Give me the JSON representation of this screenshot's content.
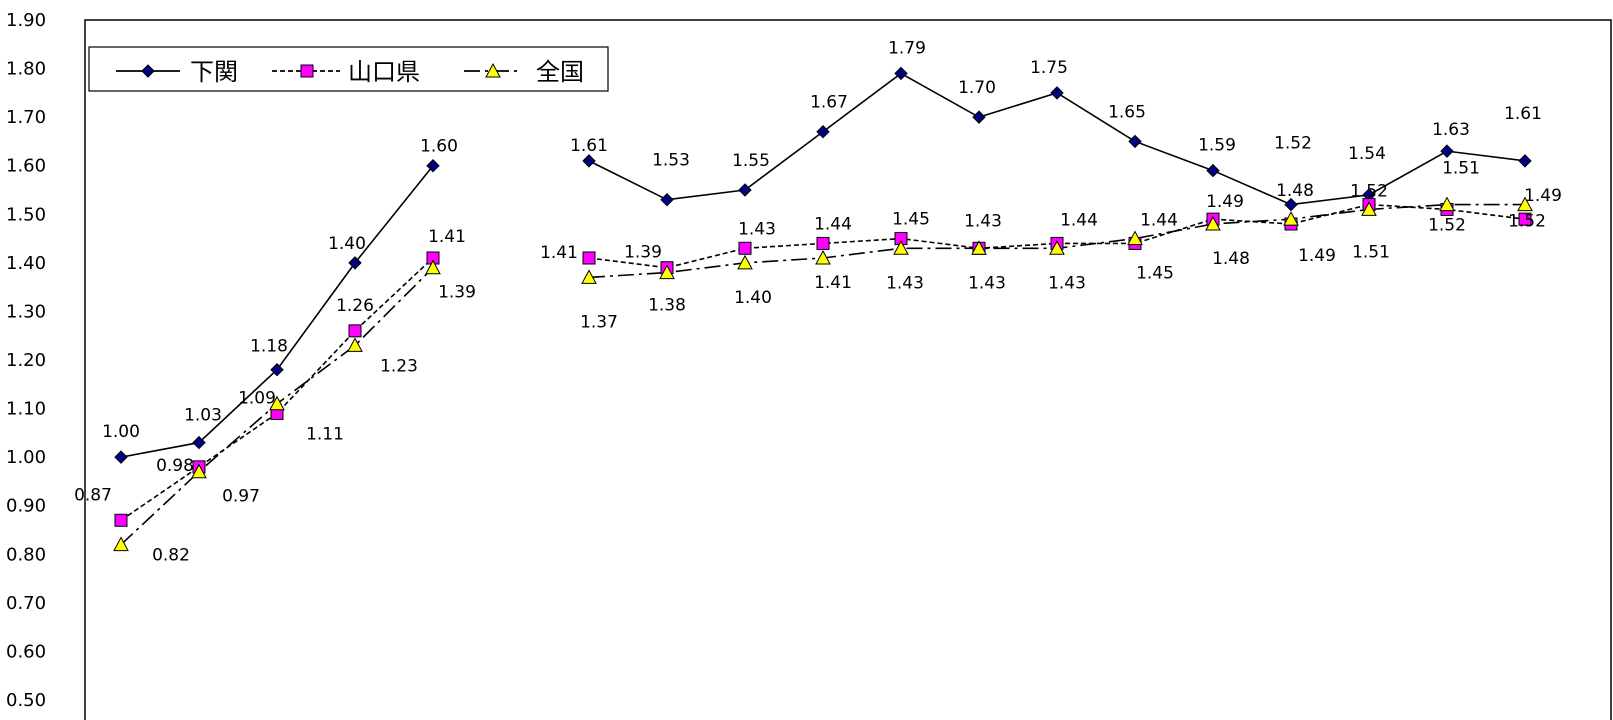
{
  "chart_data": {
    "type": "line",
    "ylim": [
      0.5,
      1.9
    ],
    "yticks": [
      "0.50",
      "0.60",
      "0.70",
      "0.80",
      "0.90",
      "1.00",
      "1.10",
      "1.20",
      "1.30",
      "1.40",
      "1.50",
      "1.60",
      "1.70",
      "1.80",
      "1.90"
    ],
    "n_points": 19,
    "series": [
      {
        "name": "下関",
        "marker": "diamond",
        "color": "#000080",
        "values": [
          1.0,
          1.03,
          1.18,
          1.4,
          1.6,
          null,
          1.61,
          1.53,
          1.55,
          1.67,
          1.79,
          1.7,
          1.75,
          1.65,
          1.59,
          1.52,
          1.54,
          1.63,
          1.61
        ],
        "labels": [
          "1.00",
          "1.03",
          "1.18",
          "1.40",
          "1.60",
          null,
          "1.61",
          "1.53",
          "1.55",
          "1.67",
          "1.79",
          "1.70",
          "1.75",
          "1.65",
          "1.59",
          "1.52",
          "1.54",
          "1.63",
          "1.61"
        ]
      },
      {
        "name": "山口県",
        "marker": "square",
        "color": "#ff00ff",
        "values": [
          0.87,
          0.98,
          1.09,
          1.26,
          1.41,
          null,
          1.41,
          1.39,
          1.43,
          1.44,
          1.45,
          1.43,
          1.44,
          1.44,
          1.49,
          1.48,
          1.52,
          1.51,
          1.49
        ],
        "labels": [
          "0.87",
          "0.98",
          "1.09",
          "1.26",
          "1.41",
          null,
          "1.41",
          "1.39",
          "1.43",
          "1.44",
          "1.45",
          "1.43",
          "1.44",
          "1.44",
          "1.49",
          "1.48",
          "1.52",
          "1.51",
          "1.49"
        ]
      },
      {
        "name": "全国",
        "marker": "triangle",
        "color": "#ffff00",
        "values": [
          0.82,
          0.97,
          1.11,
          1.23,
          1.39,
          null,
          1.37,
          1.38,
          1.4,
          1.41,
          1.43,
          1.43,
          1.43,
          1.45,
          1.48,
          1.49,
          1.51,
          1.52,
          1.52
        ],
        "labels": [
          "0.82",
          "0.97",
          "1.11",
          "1.23",
          "1.39",
          null,
          "1.37",
          "1.38",
          "1.40",
          "1.41",
          "1.43",
          "1.43",
          "1.43",
          "1.45",
          "1.48",
          "1.49",
          "1.51",
          "1.52",
          "1.52"
        ]
      }
    ],
    "legend": {
      "position": "top-left",
      "items": [
        "下関",
        "山口県",
        "全国"
      ]
    },
    "grid": false
  }
}
